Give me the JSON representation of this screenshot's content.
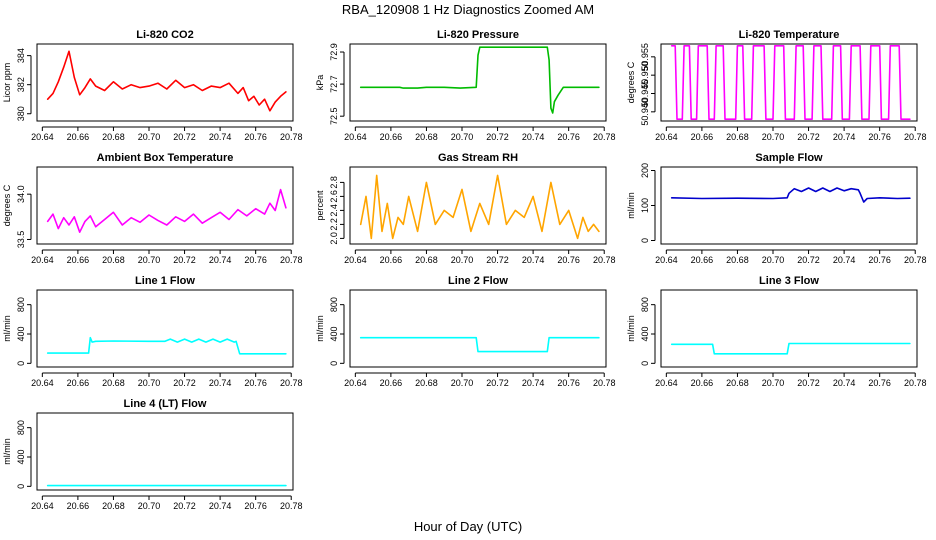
{
  "figure": {
    "title": "RBA_120908  1 Hz Diagnostics Zoomed AM",
    "xlabel": "Hour of Day (UTC)"
  },
  "chart_data": [
    {
      "type": "line",
      "title": "Li-820 CO2",
      "ylabel": "Licor ppm",
      "color": "#ff0000",
      "xlim": [
        20.637,
        20.781
      ],
      "ylim": [
        379.5,
        384.8
      ],
      "xticks": [
        20.64,
        20.66,
        20.68,
        20.7,
        20.72,
        20.74,
        20.76,
        20.78
      ],
      "xtick_labels": [
        "20.64",
        "20.66",
        "20.68",
        "20.70",
        "20.72",
        "20.74",
        "20.76",
        "20.78"
      ],
      "yticks": [
        380,
        382,
        384
      ],
      "ytick_labels": [
        "380",
        "382",
        "384"
      ],
      "x": [
        20.643,
        20.646,
        20.649,
        20.652,
        20.655,
        20.658,
        20.661,
        20.664,
        20.667,
        20.67,
        20.675,
        20.68,
        20.685,
        20.69,
        20.695,
        20.7,
        20.705,
        20.71,
        20.715,
        20.72,
        20.725,
        20.73,
        20.735,
        20.74,
        20.745,
        20.75,
        20.753,
        20.756,
        20.759,
        20.762,
        20.765,
        20.768,
        20.771,
        20.774,
        20.777
      ],
      "y": [
        381.0,
        381.4,
        382.2,
        383.2,
        384.3,
        382.5,
        381.3,
        381.8,
        382.4,
        381.9,
        381.6,
        382.2,
        381.7,
        382.0,
        381.8,
        381.9,
        382.1,
        381.7,
        382.3,
        381.8,
        382.0,
        381.6,
        381.9,
        381.8,
        382.1,
        381.4,
        381.8,
        380.9,
        381.2,
        380.6,
        381.0,
        380.2,
        380.8,
        381.2,
        381.5
      ]
    },
    {
      "type": "line",
      "title": "Li-820 Pressure",
      "ylabel": "kPa",
      "color": "#00bb00",
      "xlim": [
        20.637,
        20.781
      ],
      "ylim": [
        72.47,
        72.95
      ],
      "xticks": [
        20.64,
        20.66,
        20.68,
        20.7,
        20.72,
        20.74,
        20.76,
        20.78
      ],
      "xtick_labels": [
        "20.64",
        "20.66",
        "20.68",
        "20.70",
        "20.72",
        "20.74",
        "20.76",
        "20.78"
      ],
      "yticks": [
        72.5,
        72.7,
        72.9
      ],
      "ytick_labels": [
        "72.5",
        "72.7",
        "72.9"
      ],
      "x": [
        20.643,
        20.655,
        20.665,
        20.667,
        20.675,
        20.68,
        20.69,
        20.699,
        20.708,
        20.709,
        20.71,
        20.72,
        20.73,
        20.74,
        20.748,
        20.749,
        20.75,
        20.751,
        20.752,
        20.754,
        20.757,
        20.76,
        20.77,
        20.777
      ],
      "y": [
        72.68,
        72.68,
        72.68,
        72.675,
        72.675,
        72.68,
        72.68,
        72.675,
        72.68,
        72.88,
        72.93,
        72.93,
        72.93,
        72.93,
        72.93,
        72.85,
        72.55,
        72.52,
        72.59,
        72.63,
        72.68,
        72.68,
        72.68,
        72.68
      ]
    },
    {
      "type": "line",
      "title": "Li-820 Temperature",
      "ylabel": "degrees C",
      "color": "#ff00ff",
      "xlim": [
        20.637,
        20.781
      ],
      "ylim": [
        50.9375,
        50.9585
      ],
      "xticks": [
        20.64,
        20.66,
        20.68,
        20.7,
        20.72,
        20.74,
        20.76,
        20.78
      ],
      "xtick_labels": [
        "20.64",
        "20.66",
        "20.68",
        "20.70",
        "20.72",
        "20.74",
        "20.76",
        "20.78"
      ],
      "yticks": [
        50.94,
        50.945,
        50.95,
        50.955
      ],
      "ytick_labels": [
        "50.940",
        "50.945",
        "50.950",
        "50.955"
      ],
      "x": [
        20.643,
        20.645,
        20.646,
        20.649,
        20.65,
        20.653,
        20.654,
        20.657,
        20.658,
        20.663,
        20.664,
        20.667,
        20.668,
        20.672,
        20.673,
        20.679,
        20.68,
        20.683,
        20.684,
        20.688,
        20.689,
        20.695,
        20.696,
        20.7,
        20.701,
        20.706,
        20.707,
        20.712,
        20.713,
        20.717,
        20.718,
        20.722,
        20.723,
        20.727,
        20.728,
        20.733,
        20.734,
        20.738,
        20.739,
        20.743,
        20.744,
        20.749,
        20.75,
        20.754,
        20.755,
        20.76,
        20.761,
        20.765,
        20.766,
        20.771,
        20.772,
        20.777
      ],
      "y": [
        50.958,
        50.958,
        50.938,
        50.938,
        50.958,
        50.958,
        50.938,
        50.938,
        50.958,
        50.958,
        50.938,
        50.938,
        50.958,
        50.958,
        50.938,
        50.938,
        50.958,
        50.958,
        50.938,
        50.938,
        50.958,
        50.958,
        50.938,
        50.938,
        50.958,
        50.958,
        50.938,
        50.938,
        50.958,
        50.958,
        50.938,
        50.938,
        50.958,
        50.958,
        50.938,
        50.938,
        50.958,
        50.958,
        50.938,
        50.938,
        50.958,
        50.958,
        50.938,
        50.938,
        50.958,
        50.958,
        50.938,
        50.938,
        50.958,
        50.958,
        50.938,
        50.938
      ]
    },
    {
      "type": "line",
      "title": "Ambient Box Temperature",
      "ylabel": "degrees C",
      "color": "#ff00ff",
      "xlim": [
        20.637,
        20.781
      ],
      "ylim": [
        33.45,
        34.3
      ],
      "xticks": [
        20.64,
        20.66,
        20.68,
        20.7,
        20.72,
        20.74,
        20.76,
        20.78
      ],
      "xtick_labels": [
        "20.64",
        "20.66",
        "20.68",
        "20.70",
        "20.72",
        "20.74",
        "20.76",
        "20.78"
      ],
      "yticks": [
        33.5,
        34.0
      ],
      "ytick_labels": [
        "33.5",
        "34.0"
      ],
      "x": [
        20.643,
        20.646,
        20.649,
        20.652,
        20.655,
        20.658,
        20.661,
        20.664,
        20.667,
        20.67,
        20.675,
        20.68,
        20.685,
        20.69,
        20.695,
        20.7,
        20.705,
        20.71,
        20.715,
        20.72,
        20.725,
        20.73,
        20.735,
        20.74,
        20.745,
        20.75,
        20.755,
        20.76,
        20.765,
        20.768,
        20.771,
        20.774,
        20.777
      ],
      "y": [
        33.7,
        33.78,
        33.62,
        33.74,
        33.66,
        33.75,
        33.58,
        33.7,
        33.76,
        33.64,
        33.72,
        33.8,
        33.66,
        33.74,
        33.69,
        33.77,
        33.71,
        33.66,
        33.75,
        33.7,
        33.78,
        33.68,
        33.74,
        33.8,
        33.72,
        33.83,
        33.76,
        33.84,
        33.78,
        33.9,
        33.82,
        34.05,
        33.85
      ]
    },
    {
      "type": "line",
      "title": "Gas Stream RH",
      "ylabel": "percent",
      "color": "#ffa500",
      "xlim": [
        20.637,
        20.781
      ],
      "ylim": [
        1.92,
        3.02
      ],
      "xticks": [
        20.64,
        20.66,
        20.68,
        20.7,
        20.72,
        20.74,
        20.76,
        20.78
      ],
      "xtick_labels": [
        "20.64",
        "20.66",
        "20.68",
        "20.70",
        "20.72",
        "20.74",
        "20.76",
        "20.78"
      ],
      "yticks": [
        2.0,
        2.2,
        2.4,
        2.6,
        2.8
      ],
      "ytick_labels": [
        "2.0",
        "2.2",
        "2.4",
        "2.6",
        "2.8"
      ],
      "x": [
        20.643,
        20.646,
        20.649,
        20.652,
        20.655,
        20.658,
        20.661,
        20.664,
        20.667,
        20.67,
        20.675,
        20.68,
        20.685,
        20.69,
        20.695,
        20.7,
        20.705,
        20.71,
        20.715,
        20.72,
        20.725,
        20.73,
        20.735,
        20.74,
        20.745,
        20.75,
        20.755,
        20.76,
        20.765,
        20.768,
        20.771,
        20.774,
        20.777
      ],
      "y": [
        2.2,
        2.6,
        2.0,
        2.9,
        2.1,
        2.5,
        2.0,
        2.3,
        2.2,
        2.6,
        2.1,
        2.8,
        2.2,
        2.4,
        2.3,
        2.7,
        2.1,
        2.5,
        2.2,
        2.9,
        2.2,
        2.4,
        2.3,
        2.6,
        2.1,
        2.8,
        2.2,
        2.4,
        2.0,
        2.3,
        2.1,
        2.2,
        2.1
      ]
    },
    {
      "type": "line",
      "title": "Sample Flow",
      "ylabel": "ml/min",
      "color": "#0000cc",
      "xlim": [
        20.637,
        20.781
      ],
      "ylim": [
        -10,
        210
      ],
      "xticks": [
        20.64,
        20.66,
        20.68,
        20.7,
        20.72,
        20.74,
        20.76,
        20.78
      ],
      "xtick_labels": [
        "20.64",
        "20.66",
        "20.68",
        "20.70",
        "20.72",
        "20.74",
        "20.76",
        "20.78"
      ],
      "yticks": [
        0,
        100,
        200
      ],
      "ytick_labels": [
        "0",
        "100",
        "200"
      ],
      "x": [
        20.643,
        20.66,
        20.68,
        20.7,
        20.708,
        20.709,
        20.712,
        20.716,
        20.72,
        20.724,
        20.728,
        20.732,
        20.736,
        20.74,
        20.744,
        20.748,
        20.749,
        20.751,
        20.753,
        20.76,
        20.77,
        20.777
      ],
      "y": [
        122,
        120,
        121,
        120,
        122,
        135,
        148,
        140,
        150,
        140,
        150,
        140,
        150,
        142,
        148,
        145,
        135,
        110,
        120,
        122,
        120,
        121
      ]
    },
    {
      "type": "line",
      "title": "Line 1 Flow",
      "ylabel": "ml/min",
      "color": "#00ffff",
      "xlim": [
        20.637,
        20.781
      ],
      "ylim": [
        -50,
        1000
      ],
      "xticks": [
        20.64,
        20.66,
        20.68,
        20.7,
        20.72,
        20.74,
        20.76,
        20.78
      ],
      "xtick_labels": [
        "20.64",
        "20.66",
        "20.68",
        "20.70",
        "20.72",
        "20.74",
        "20.76",
        "20.78"
      ],
      "yticks": [
        0,
        400,
        800
      ],
      "ytick_labels": [
        "0",
        "400",
        "800"
      ],
      "x": [
        20.643,
        20.666,
        20.667,
        20.668,
        20.67,
        20.68,
        20.7,
        20.709,
        20.712,
        20.716,
        20.72,
        20.724,
        20.728,
        20.732,
        20.736,
        20.74,
        20.744,
        20.748,
        20.749,
        20.751,
        20.76,
        20.777
      ],
      "y": [
        140,
        140,
        350,
        290,
        300,
        305,
        300,
        300,
        330,
        290,
        330,
        290,
        330,
        290,
        330,
        290,
        330,
        290,
        300,
        130,
        130,
        130
      ]
    },
    {
      "type": "line",
      "title": "Line 2 Flow",
      "ylabel": "ml/min",
      "color": "#00ffff",
      "xlim": [
        20.637,
        20.781
      ],
      "ylim": [
        -50,
        1000
      ],
      "xticks": [
        20.64,
        20.66,
        20.68,
        20.7,
        20.72,
        20.74,
        20.76,
        20.78
      ],
      "xtick_labels": [
        "20.64",
        "20.66",
        "20.68",
        "20.70",
        "20.72",
        "20.74",
        "20.76",
        "20.78"
      ],
      "yticks": [
        0,
        400,
        800
      ],
      "ytick_labels": [
        "0",
        "400",
        "800"
      ],
      "x": [
        20.643,
        20.66,
        20.68,
        20.7,
        20.708,
        20.709,
        20.72,
        20.74,
        20.748,
        20.749,
        20.76,
        20.777
      ],
      "y": [
        350,
        350,
        350,
        350,
        350,
        160,
        160,
        160,
        160,
        350,
        350,
        350
      ]
    },
    {
      "type": "line",
      "title": "Line 3 Flow",
      "ylabel": "ml/min",
      "color": "#00ffff",
      "xlim": [
        20.637,
        20.781
      ],
      "ylim": [
        -50,
        1000
      ],
      "xticks": [
        20.64,
        20.66,
        20.68,
        20.7,
        20.72,
        20.74,
        20.76,
        20.78
      ],
      "xtick_labels": [
        "20.64",
        "20.66",
        "20.68",
        "20.70",
        "20.72",
        "20.74",
        "20.76",
        "20.78"
      ],
      "yticks": [
        0,
        400,
        800
      ],
      "ytick_labels": [
        "0",
        "400",
        "800"
      ],
      "x": [
        20.643,
        20.66,
        20.666,
        20.667,
        20.68,
        20.7,
        20.708,
        20.709,
        20.72,
        20.74,
        20.76,
        20.777
      ],
      "y": [
        260,
        260,
        260,
        130,
        130,
        130,
        130,
        270,
        270,
        270,
        270,
        270
      ]
    },
    {
      "type": "line",
      "title": "Line 4 (LT) Flow",
      "ylabel": "ml/min",
      "color": "#00ffff",
      "xlim": [
        20.637,
        20.781
      ],
      "ylim": [
        -50,
        1000
      ],
      "xticks": [
        20.64,
        20.66,
        20.68,
        20.7,
        20.72,
        20.74,
        20.76,
        20.78
      ],
      "xtick_labels": [
        "20.64",
        "20.66",
        "20.68",
        "20.70",
        "20.72",
        "20.74",
        "20.76",
        "20.78"
      ],
      "yticks": [
        0,
        400,
        800
      ],
      "ytick_labels": [
        "0",
        "400",
        "800"
      ],
      "x": [
        20.643,
        20.777
      ],
      "y": [
        10,
        10
      ]
    }
  ]
}
